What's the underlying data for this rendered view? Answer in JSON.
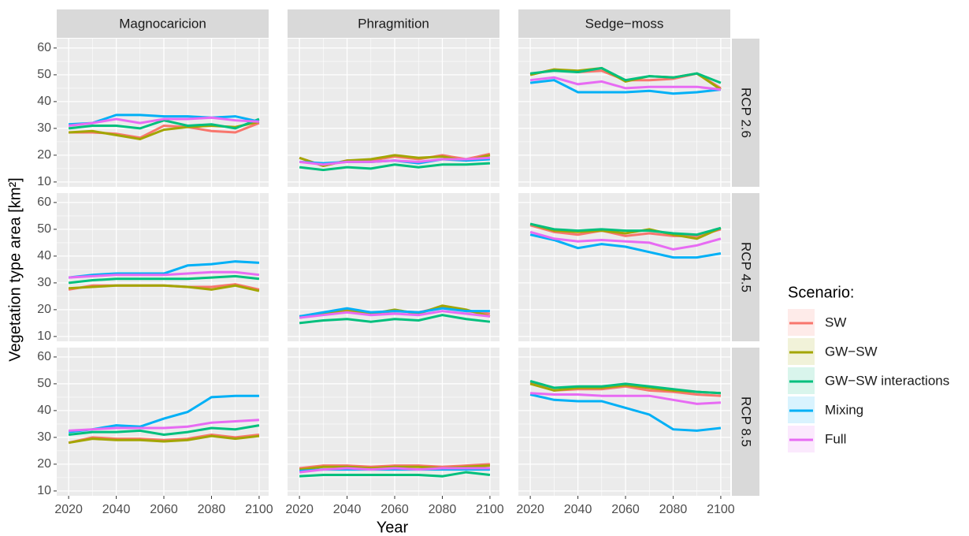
{
  "chart_data": {
    "type": "line",
    "x_label": "Year",
    "y_label": "Vegetation type area [km²]",
    "legend_title": "Scenario:",
    "columns": [
      "Magnocaricion",
      "Phragmition",
      "Sedge−moss"
    ],
    "rows": [
      "RCP 2.6",
      "RCP 4.5",
      "RCP 8.5"
    ],
    "x": [
      2020,
      2030,
      2040,
      2050,
      2060,
      2070,
      2080,
      2090,
      2100
    ],
    "xlim": [
      2015,
      2104
    ],
    "xticks": [
      2020,
      2040,
      2060,
      2080,
      2100
    ],
    "ylim": [
      8.2,
      63.5
    ],
    "yticks": [
      10,
      20,
      30,
      40,
      50,
      60
    ],
    "grid": true,
    "series": [
      {
        "name": "SW",
        "color": "#F8766D"
      },
      {
        "name": "GW−SW",
        "color": "#A3A500"
      },
      {
        "name": "GW−SW interactions",
        "color": "#00BF7D"
      },
      {
        "name": "Mixing",
        "color": "#00B0F6"
      },
      {
        "name": "Full",
        "color": "#E76BF3"
      }
    ],
    "panels": [
      {
        "values": [
          [
            28.5,
            28.5,
            28,
            26.5,
            31,
            30.5,
            29,
            28.5,
            32
          ],
          [
            28.5,
            29,
            27.5,
            26,
            29.5,
            30.5,
            31,
            30.5,
            32.5
          ],
          [
            30,
            31,
            31,
            30,
            33,
            31,
            31.5,
            30,
            33.5
          ],
          [
            31.5,
            32,
            35,
            35,
            34.5,
            34.5,
            34,
            34.5,
            32.5
          ],
          [
            31,
            32,
            33.5,
            32,
            33.5,
            33.5,
            34,
            33,
            32.5
          ]
        ]
      },
      {
        "values": [
          [
            19,
            16,
            18,
            18,
            19.5,
            18.5,
            20,
            18.5,
            20.5
          ],
          [
            19,
            16,
            18,
            18.5,
            20,
            19,
            19.5,
            18,
            20
          ],
          [
            15.5,
            14.5,
            15.5,
            15,
            16.5,
            15.5,
            16.5,
            16.5,
            17
          ],
          [
            17.5,
            17,
            17.5,
            17.5,
            18,
            17,
            18.5,
            18,
            18.5
          ],
          [
            17.5,
            16.5,
            17.5,
            17.5,
            18,
            17.5,
            18.5,
            18.5,
            19
          ]
        ]
      },
      {
        "values": [
          [
            50,
            52,
            51,
            51.5,
            48,
            48,
            48.5,
            50.5,
            45
          ],
          [
            50,
            52,
            51.5,
            52.5,
            47.5,
            49.5,
            49,
            50.5,
            44.5
          ],
          [
            50.5,
            51.5,
            51,
            52.5,
            48,
            49.5,
            49,
            50.5,
            47
          ],
          [
            47,
            48,
            43.5,
            43.5,
            43.5,
            44,
            43,
            43.5,
            44.5
          ],
          [
            48,
            49,
            46.5,
            47.5,
            45,
            45.5,
            45.5,
            45.5,
            44.5
          ]
        ]
      },
      {
        "values": [
          [
            27.5,
            29,
            29,
            29,
            29,
            28.5,
            28.5,
            29.5,
            27.5
          ],
          [
            28,
            28.5,
            29,
            29,
            29,
            28.5,
            27.5,
            29,
            27
          ],
          [
            30,
            31,
            31.5,
            31.5,
            31.5,
            31.5,
            32,
            32.5,
            31.5
          ],
          [
            32,
            33,
            33.5,
            33.5,
            33.5,
            36.5,
            37,
            38,
            37.5
          ],
          [
            32,
            32.5,
            33,
            33,
            33,
            33.5,
            34,
            34,
            33
          ]
        ]
      },
      {
        "values": [
          [
            17.5,
            18.5,
            20,
            18.5,
            19.5,
            19,
            21,
            19.5,
            18.5
          ],
          [
            17,
            18.5,
            19.5,
            18.5,
            20,
            18.5,
            21.5,
            20,
            17.5
          ],
          [
            15,
            16,
            16.5,
            15.5,
            16.5,
            16,
            18,
            16.5,
            15.5
          ],
          [
            17.5,
            19,
            20.5,
            19,
            19.5,
            19,
            20.5,
            19.5,
            19.5
          ],
          [
            17,
            18,
            19,
            18,
            18.5,
            18,
            19.5,
            18.5,
            17.5
          ]
        ]
      },
      {
        "values": [
          [
            51.5,
            49,
            48,
            49.5,
            47.5,
            48.5,
            47.5,
            47.5,
            50
          ],
          [
            52,
            49.5,
            49,
            49.5,
            48.5,
            50,
            48,
            46.5,
            50.5
          ],
          [
            52,
            50,
            49.5,
            50,
            49.5,
            49.5,
            48.5,
            48,
            50.5
          ],
          [
            48,
            46,
            43,
            44.5,
            43.5,
            41.5,
            39.5,
            39.5,
            41
          ],
          [
            49,
            46.5,
            45.5,
            46,
            45.5,
            45,
            42.5,
            44,
            46.5
          ]
        ]
      },
      {
        "values": [
          [
            28,
            30,
            29.5,
            29.5,
            29,
            29.5,
            31,
            30,
            31
          ],
          [
            28,
            29.5,
            29,
            29,
            28.5,
            29,
            30.5,
            29.5,
            30.5
          ],
          [
            31,
            32,
            32,
            32.5,
            31,
            32,
            33.5,
            33,
            34.5
          ],
          [
            32,
            33,
            34.5,
            34,
            37,
            39.5,
            45,
            45.5,
            45.5
          ],
          [
            32.5,
            33,
            33.5,
            33.5,
            33.5,
            34,
            35.5,
            36,
            36.5
          ]
        ]
      },
      {
        "values": [
          [
            18.5,
            19.5,
            19.5,
            19,
            19.5,
            19.5,
            19,
            19.5,
            20
          ],
          [
            18,
            19,
            19,
            18.5,
            19,
            19,
            18.5,
            19,
            19.5
          ],
          [
            15.5,
            16,
            16,
            16,
            16,
            16,
            15.5,
            17,
            16
          ],
          [
            17.5,
            18,
            18,
            18,
            18,
            18,
            18,
            18,
            18
          ],
          [
            17,
            18,
            18.5,
            18,
            18.5,
            18,
            18.5,
            18.5,
            18.5
          ]
        ]
      },
      {
        "values": [
          [
            50.5,
            47.5,
            48,
            48,
            49,
            47.5,
            47,
            46,
            45.5
          ],
          [
            50,
            47.5,
            48.5,
            48.5,
            49.5,
            48.5,
            47.5,
            47,
            46.5
          ],
          [
            51,
            48.5,
            49,
            49,
            50,
            49,
            48,
            47,
            46.5
          ],
          [
            46,
            44,
            43.5,
            43.5,
            41,
            38.5,
            33,
            32.5,
            33.5
          ],
          [
            46.5,
            46,
            46,
            45.5,
            45.5,
            45.5,
            44,
            42.5,
            43
          ]
        ]
      }
    ]
  }
}
